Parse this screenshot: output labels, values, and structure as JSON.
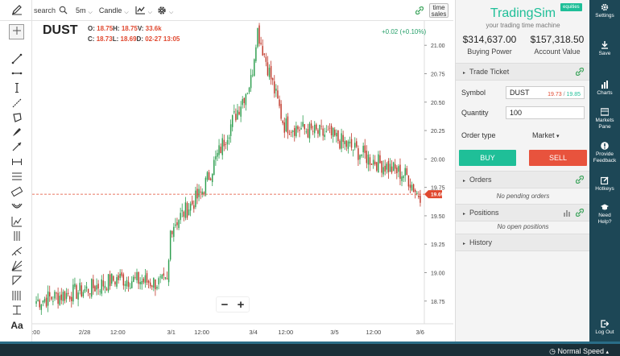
{
  "toolbar": {
    "search_label": "search",
    "interval": "5m",
    "chart_type": "Candle",
    "time_sales_line1": "time",
    "time_sales_line2": "sales"
  },
  "left_tools": [
    "pencil-icon",
    "crosshair-icon",
    "trendline-icon",
    "horizontal-line-icon",
    "vertical-line-icon",
    "ray-icon",
    "polygon-icon",
    "brush-icon",
    "arrow-line-icon",
    "measure-icon",
    "horizontal-lines-icon",
    "ruler-icon",
    "arc-icon",
    "fib-icon",
    "parallel-channel-icon",
    "pitchfork-icon",
    "gann-icon",
    "triangle-icon",
    "cycle-lines-icon",
    "text-level-icon",
    "text-icon"
  ],
  "left_tools_text": {
    "text_tool": "Aa"
  },
  "chart": {
    "symbol": "DUST",
    "ohlc_row1": {
      "o_label": "O:",
      "o": "18.75",
      "h_label": "H:",
      "h": "18.75",
      "v_label": "V:",
      "v": "33.6k"
    },
    "ohlc_row2": {
      "c_label": "C:",
      "c": "18.73",
      "l_label": "L:",
      "l": "18.69",
      "d_label": "D:",
      "d": "02-27 13:05"
    },
    "change": "+0.02 (+0.10%)",
    "current_price_label": "19.69",
    "zoom_out": "−",
    "zoom_in": "+"
  },
  "chart_data": {
    "type": "candlestick",
    "title": "",
    "xlabel": "",
    "ylabel": "",
    "ylim": [
      18.55,
      21.2
    ],
    "y_ticks": [
      "21.00",
      "20.75",
      "20.50",
      "20.25",
      "20.00",
      "19.75",
      "19.50",
      "19.25",
      "19.00",
      "18.75"
    ],
    "x_ticks": [
      ":00",
      "2/28",
      "12:00",
      "3/1",
      "12:00",
      "3/4",
      "12:00",
      "3/5",
      "12:00",
      "3/6"
    ],
    "current_price": 19.69,
    "key_points": [
      {
        "t": "2/27 13:00",
        "price": 18.75
      },
      {
        "t": "2/28 00:00",
        "price": 18.85
      },
      {
        "t": "2/28 12:00",
        "price": 18.95
      },
      {
        "t": "3/1 00:00",
        "price": 18.9
      },
      {
        "t": "3/1 02:00",
        "price": 19.4
      },
      {
        "t": "3/1 12:00",
        "price": 19.7
      },
      {
        "t": "3/2 00:00",
        "price": 20.25
      },
      {
        "t": "3/4 00:00",
        "price": 20.7
      },
      {
        "t": "3/4 02:00",
        "price": 21.15
      },
      {
        "t": "3/4 12:00",
        "price": 20.3
      },
      {
        "t": "3/5 00:00",
        "price": 20.2
      },
      {
        "t": "3/5 12:00",
        "price": 20.0
      },
      {
        "t": "3/6 00:00",
        "price": 19.85
      },
      {
        "t": "3/6 02:00",
        "price": 19.69
      }
    ],
    "up_color": "#2e9e4f",
    "down_color": "#c0392b"
  },
  "panel": {
    "brand": "TradingSim",
    "tagline": "your trading time machine",
    "badge": "equities",
    "buying_power": "$314,637.00",
    "buying_power_label": "Buying Power",
    "account_value": "$157,318.50",
    "account_value_label": "Account Value",
    "trade_ticket": "Trade Ticket",
    "symbol_label": "Symbol",
    "symbol_value": "DUST",
    "bid": "19.73",
    "ask": "19.85",
    "bidask_sep": " / ",
    "quantity_label": "Quantity",
    "quantity_value": "100",
    "order_type_label": "Order type",
    "order_type_value": "Market",
    "buy": "BUY",
    "sell": "SELL",
    "orders": "Orders",
    "no_orders": "No pending orders",
    "positions": "Positions",
    "no_positions": "No open positions",
    "history": "History"
  },
  "nav": {
    "settings": "Settings",
    "save": "Save",
    "charts": "Charts",
    "markets_pane_1": "Markets",
    "markets_pane_2": "Pane",
    "feedback_1": "Provide",
    "feedback_2": "Feedback",
    "hotkeys": "Hotkeys",
    "help_1": "Need",
    "help_2": "Help?",
    "logout": "Log Out"
  },
  "status": {
    "speed": "Normal Speed"
  },
  "colors": {
    "accent": "#1fbf98",
    "sell": "#e8533d",
    "nav_bg": "#1d4756",
    "price_line": "#e0482f"
  }
}
